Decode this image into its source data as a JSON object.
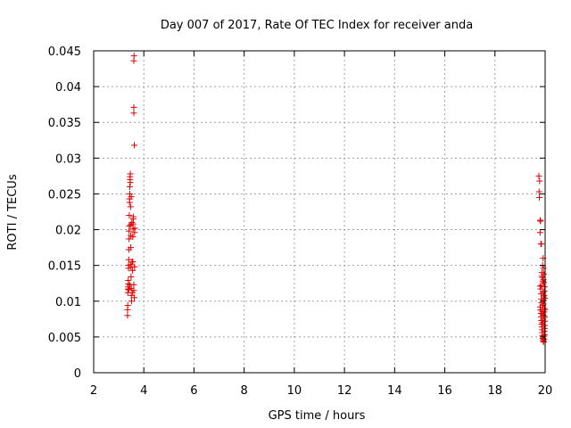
{
  "chart_data": {
    "type": "scatter",
    "title": "Day 007 of 2017, Rate Of TEC Index for receiver anda",
    "xlabel": "GPS time / hours",
    "ylabel": "ROTI / TECUs",
    "xlim": [
      2,
      20
    ],
    "ylim": [
      0,
      0.045
    ],
    "x_ticks": [
      "2",
      "4",
      "6",
      "8",
      "10",
      "12",
      "14",
      "16",
      "18",
      "20"
    ],
    "y_ticks": [
      "0",
      "0.005",
      "0.01",
      "0.015",
      "0.02",
      "0.025",
      "0.03",
      "0.035",
      "0.04",
      "0.045"
    ],
    "grid": true,
    "marker": "+",
    "marker_color": "#e00000",
    "series": [
      {
        "points": [
          [
            3.35,
            0.008
          ],
          [
            3.35,
            0.0088
          ],
          [
            3.36,
            0.0094
          ],
          [
            3.36,
            0.0112
          ],
          [
            3.37,
            0.0117
          ],
          [
            3.37,
            0.012
          ],
          [
            3.38,
            0.0124
          ],
          [
            3.38,
            0.0129
          ],
          [
            3.39,
            0.0146
          ],
          [
            3.39,
            0.015
          ],
          [
            3.4,
            0.0158
          ],
          [
            3.4,
            0.0172
          ],
          [
            3.41,
            0.0187
          ],
          [
            3.41,
            0.0198
          ],
          [
            3.42,
            0.0205
          ],
          [
            3.42,
            0.022
          ],
          [
            3.43,
            0.0238
          ],
          [
            3.43,
            0.0243
          ],
          [
            3.44,
            0.025
          ],
          [
            3.44,
            0.026
          ],
          [
            3.45,
            0.027
          ],
          [
            3.45,
            0.0274
          ],
          [
            3.46,
            0.0278
          ],
          [
            3.46,
            0.0266
          ],
          [
            3.47,
            0.0232
          ],
          [
            3.47,
            0.0207
          ],
          [
            3.48,
            0.0192
          ],
          [
            3.48,
            0.0175
          ],
          [
            3.49,
            0.0148
          ],
          [
            3.49,
            0.0134
          ],
          [
            3.5,
            0.0118
          ],
          [
            3.5,
            0.0108
          ],
          [
            3.51,
            0.01
          ],
          [
            3.4,
            0.0116
          ],
          [
            3.44,
            0.0123
          ],
          [
            3.47,
            0.0151
          ],
          [
            3.55,
            0.0112
          ],
          [
            3.55,
            0.0143
          ],
          [
            3.56,
            0.0155
          ],
          [
            3.56,
            0.019
          ],
          [
            3.57,
            0.0201
          ],
          [
            3.57,
            0.0208
          ],
          [
            3.58,
            0.0215
          ],
          [
            3.58,
            0.0218
          ],
          [
            3.6,
            0.0115
          ],
          [
            3.6,
            0.0123
          ],
          [
            3.62,
            0.0105
          ],
          [
            3.63,
            0.0148
          ],
          [
            3.63,
            0.0196
          ],
          [
            3.64,
            0.0202
          ],
          [
            3.62,
            0.0318
          ],
          [
            3.6,
            0.0363
          ],
          [
            3.6,
            0.0371
          ],
          [
            3.6,
            0.0436
          ],
          [
            3.61,
            0.0443
          ],
          [
            3.52,
            0.021
          ],
          [
            3.5,
            0.0246
          ],
          [
            3.53,
            0.0155
          ],
          [
            19.75,
            0.0275
          ],
          [
            19.78,
            0.0268
          ],
          [
            19.76,
            0.0253
          ],
          [
            19.77,
            0.0245
          ],
          [
            19.8,
            0.0213
          ],
          [
            19.82,
            0.0212
          ],
          [
            19.8,
            0.0196
          ],
          [
            19.83,
            0.018
          ],
          [
            19.85,
            0.018
          ],
          [
            19.9,
            0.015
          ],
          [
            19.92,
            0.016
          ],
          [
            19.93,
            0.0146
          ],
          [
            19.88,
            0.0135
          ],
          [
            19.95,
            0.0126
          ],
          [
            19.8,
            0.0121
          ],
          [
            19.82,
            0.0117
          ],
          [
            19.84,
            0.011
          ],
          [
            19.85,
            0.0103
          ],
          [
            19.86,
            0.0098
          ],
          [
            19.8,
            0.0092
          ],
          [
            19.82,
            0.0088
          ],
          [
            19.83,
            0.0083
          ],
          [
            19.84,
            0.0078
          ],
          [
            19.85,
            0.0073
          ],
          [
            19.86,
            0.0068
          ],
          [
            19.87,
            0.0064
          ],
          [
            19.88,
            0.006
          ],
          [
            19.89,
            0.0056
          ],
          [
            19.9,
            0.0052
          ],
          [
            19.91,
            0.0048
          ],
          [
            19.92,
            0.0046
          ],
          [
            19.93,
            0.0044
          ],
          [
            19.94,
            0.0043
          ],
          [
            19.95,
            0.0047
          ],
          [
            19.96,
            0.0051
          ],
          [
            19.97,
            0.0058
          ],
          [
            19.98,
            0.0062
          ],
          [
            19.9,
            0.007
          ],
          [
            19.92,
            0.0075
          ],
          [
            19.94,
            0.008
          ],
          [
            19.96,
            0.0085
          ],
          [
            19.97,
            0.009
          ],
          [
            19.93,
            0.0096
          ],
          [
            19.95,
            0.0101
          ],
          [
            19.96,
            0.0108
          ],
          [
            19.97,
            0.0114
          ],
          [
            19.98,
            0.012
          ],
          [
            19.91,
            0.0128
          ],
          [
            19.89,
            0.0133
          ],
          [
            19.87,
            0.014
          ],
          [
            19.94,
            0.0106
          ],
          [
            19.92,
            0.0112
          ],
          [
            19.9,
            0.0081
          ],
          [
            19.88,
            0.0086
          ],
          [
            19.99,
            0.0072
          ],
          [
            19.98,
            0.0066
          ],
          [
            19.97,
            0.0053
          ],
          [
            19.96,
            0.0066
          ],
          [
            19.91,
            0.0094
          ],
          [
            19.86,
            0.0122
          ],
          [
            19.95,
            0.0138
          ],
          [
            19.93,
            0.013
          ],
          [
            19.99,
            0.0104
          ],
          [
            19.99,
            0.0088
          ],
          [
            19.99,
            0.0078
          ]
        ]
      }
    ]
  }
}
